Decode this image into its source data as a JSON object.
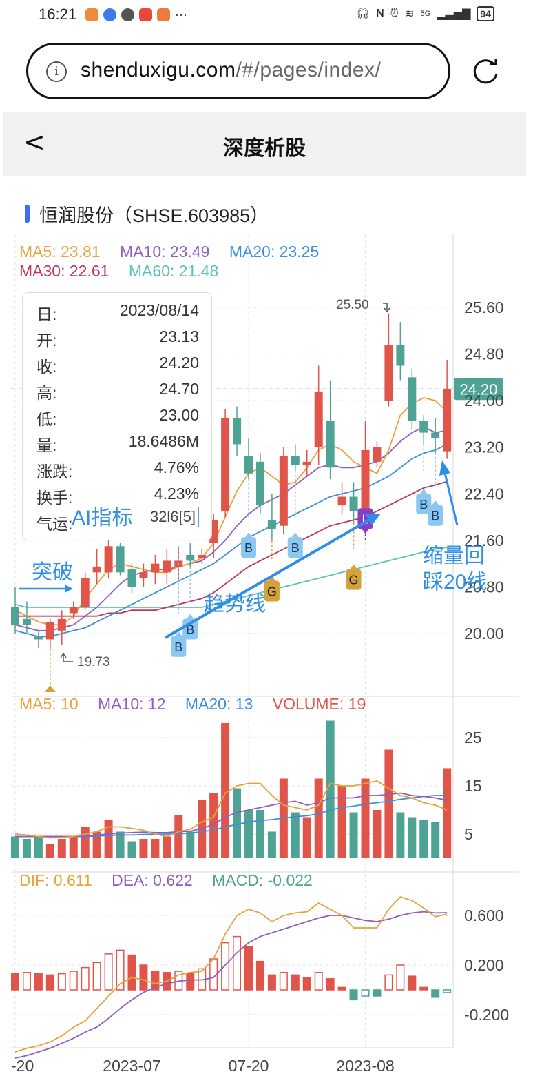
{
  "status_bar": {
    "time": "16:21",
    "signal_label": "5G",
    "battery": "94"
  },
  "browser": {
    "url_main": "shenduxigu.com",
    "url_rest": "/#/pages/index/"
  },
  "header": {
    "back_glyph": "<",
    "title": "深度析股"
  },
  "stock": {
    "name": "恒润股份（SHSE.603985）"
  },
  "ma_legend": {
    "ma5": "MA5: 23.81",
    "ma10": "MA10: 23.49",
    "ma20": "MA20: 23.25",
    "ma30": "MA30: 22.61",
    "ma60": "MA60: 21.48"
  },
  "tooltip": {
    "date_label": "日:",
    "date": "2023/08/14",
    "open_label": "开:",
    "open": "23.13",
    "close_label": "收:",
    "close": "24.20",
    "high_label": "高:",
    "high": "24.70",
    "low_label": "低:",
    "low": "23.00",
    "volume_label": "量:",
    "volume": "18.6486M",
    "change_label": "涨跌:",
    "change": "4.76%",
    "turnover_label": "换手:",
    "turnover": "4.23%",
    "qiyun_label": "气运:",
    "qiyun": "32l6[5]"
  },
  "annotations": {
    "ai": "AI指标",
    "breakout": "突破",
    "trendline": "趋势线",
    "pullback_1": "缩量回",
    "pullback_2": "踩20线",
    "high_marker": "25.50",
    "low_marker": "19.73",
    "buy": "B",
    "gold": "G",
    "long": "L"
  },
  "price_axis": {
    "ticks": [
      "25.60",
      "24.80",
      "24.00",
      "23.20",
      "22.40",
      "21.60",
      "20.80",
      "20.00"
    ],
    "current": "24.20"
  },
  "volume_legend": {
    "ma5": "MA5: 10",
    "ma10": "MA10: 12",
    "ma20": "MA20: 13",
    "volume": "VOLUME: 19"
  },
  "volume_axis": {
    "ticks": [
      "25",
      "15",
      "5"
    ]
  },
  "macd_legend": {
    "dif": "DIF: 0.611",
    "dea": "DEA: 0.622",
    "macd": "MACD: -0.022"
  },
  "macd_axis": {
    "ticks": [
      "0.600",
      "0.200",
      "-0.200"
    ]
  },
  "x_axis": {
    "ticks": [
      "-20",
      "2023-07",
      "07-20",
      "2023-08"
    ]
  },
  "colors": {
    "up": "#e0544a",
    "down": "#4fa394",
    "ma5": "#e8a23a",
    "ma10": "#8e5fc2",
    "ma20": "#3a8ee0",
    "ma30": "#c2355f",
    "ma60": "#5cc1b8",
    "accent": "#3b6ef5"
  },
  "chart_data": {
    "type": "candlestick",
    "price_range": [
      19.4,
      26.0
    ],
    "candles": [
      {
        "o": 20.45,
        "c": 20.15,
        "h": 20.8,
        "l": 20.0
      },
      {
        "o": 20.25,
        "c": 20.15,
        "h": 20.55,
        "l": 20.0
      },
      {
        "o": 19.95,
        "c": 19.9,
        "h": 20.05,
        "l": 19.75
      },
      {
        "o": 19.9,
        "c": 20.2,
        "h": 20.25,
        "l": 19.73
      },
      {
        "o": 20.05,
        "c": 20.25,
        "h": 20.4,
        "l": 19.8
      },
      {
        "o": 20.35,
        "c": 20.45,
        "h": 20.55,
        "l": 20.25
      },
      {
        "o": 20.45,
        "c": 20.95,
        "h": 21.05,
        "l": 20.4
      },
      {
        "o": 21.05,
        "c": 21.15,
        "h": 21.45,
        "l": 20.85
      },
      {
        "o": 21.05,
        "c": 21.5,
        "h": 21.6,
        "l": 20.95
      },
      {
        "o": 21.5,
        "c": 21.05,
        "h": 21.55,
        "l": 21.0
      },
      {
        "o": 21.1,
        "c": 20.8,
        "h": 21.2,
        "l": 20.7
      },
      {
        "o": 20.95,
        "c": 21.05,
        "h": 21.2,
        "l": 20.8
      },
      {
        "o": 21.05,
        "c": 21.2,
        "h": 21.35,
        "l": 20.85
      },
      {
        "o": 21.05,
        "c": 21.25,
        "h": 21.45,
        "l": 20.85
      },
      {
        "o": 21.15,
        "c": 21.25,
        "h": 21.5,
        "l": 20.9
      },
      {
        "o": 21.35,
        "c": 21.25,
        "h": 21.55,
        "l": 21.15
      },
      {
        "o": 21.3,
        "c": 21.35,
        "h": 21.45,
        "l": 21.2
      },
      {
        "o": 21.55,
        "c": 21.95,
        "h": 22.05,
        "l": 21.3
      },
      {
        "o": 22.1,
        "c": 23.7,
        "h": 23.85,
        "l": 22.0
      },
      {
        "o": 23.7,
        "c": 23.25,
        "h": 23.9,
        "l": 23.05
      },
      {
        "o": 23.05,
        "c": 22.75,
        "h": 23.35,
        "l": 22.65
      },
      {
        "o": 22.95,
        "c": 22.2,
        "h": 23.1,
        "l": 22.05
      },
      {
        "o": 21.95,
        "c": 21.8,
        "h": 22.4,
        "l": 21.6
      },
      {
        "o": 21.85,
        "c": 23.05,
        "h": 23.2,
        "l": 21.7
      },
      {
        "o": 23.05,
        "c": 22.9,
        "h": 23.25,
        "l": 22.8
      },
      {
        "o": 22.9,
        "c": 22.95,
        "h": 23.15,
        "l": 22.7
      },
      {
        "o": 23.2,
        "c": 24.15,
        "h": 24.6,
        "l": 22.9
      },
      {
        "o": 23.65,
        "c": 22.85,
        "h": 24.35,
        "l": 22.65
      },
      {
        "o": 22.2,
        "c": 22.35,
        "h": 22.6,
        "l": 22.05
      },
      {
        "o": 22.35,
        "c": 22.1,
        "h": 22.6,
        "l": 21.9
      },
      {
        "o": 21.85,
        "c": 23.15,
        "h": 23.65,
        "l": 21.85
      },
      {
        "o": 22.95,
        "c": 23.2,
        "h": 23.3,
        "l": 22.85
      },
      {
        "o": 24.0,
        "c": 24.95,
        "h": 25.5,
        "l": 23.9
      },
      {
        "o": 24.95,
        "c": 24.6,
        "h": 25.35,
        "l": 24.35
      },
      {
        "o": 24.4,
        "c": 23.65,
        "h": 24.55,
        "l": 23.5
      },
      {
        "o": 23.65,
        "c": 23.45,
        "h": 23.75,
        "l": 23.25
      },
      {
        "o": 23.45,
        "c": 23.35,
        "h": 23.7,
        "l": 23.1
      },
      {
        "o": 23.13,
        "c": 24.2,
        "h": 24.7,
        "l": 23.0
      }
    ],
    "ma5": [
      20.4,
      20.3,
      20.2,
      20.15,
      20.15,
      20.3,
      20.6,
      20.85,
      21.1,
      21.2,
      21.15,
      21.1,
      21.05,
      21.05,
      21.15,
      21.2,
      21.3,
      21.55,
      22.0,
      22.45,
      22.75,
      22.85,
      22.7,
      22.55,
      22.6,
      22.85,
      23.15,
      23.25,
      23.15,
      22.95,
      22.85,
      22.75,
      23.15,
      23.75,
      23.95,
      24.05,
      24.0,
      23.81
    ],
    "ma10": [
      20.15,
      20.1,
      20.05,
      20.05,
      20.1,
      20.15,
      20.3,
      20.45,
      20.65,
      20.85,
      21.0,
      21.05,
      21.1,
      21.1,
      21.15,
      21.2,
      21.25,
      21.4,
      21.6,
      21.85,
      22.05,
      22.2,
      22.3,
      22.4,
      22.55,
      22.7,
      22.85,
      22.9,
      22.85,
      22.85,
      22.9,
      22.95,
      23.1,
      23.3,
      23.45,
      23.55,
      23.45,
      23.49
    ],
    "ma20": [
      20.05,
      20.0,
      19.95,
      19.95,
      20.0,
      20.05,
      20.1,
      20.2,
      20.3,
      20.4,
      20.5,
      20.6,
      20.7,
      20.8,
      20.9,
      21.0,
      21.1,
      21.2,
      21.35,
      21.5,
      21.65,
      21.75,
      21.85,
      21.95,
      22.05,
      22.15,
      22.25,
      22.35,
      22.4,
      22.45,
      22.5,
      22.6,
      22.7,
      22.85,
      23.0,
      23.1,
      23.15,
      23.25
    ],
    "ma30": [
      20.3,
      20.3,
      20.3,
      20.3,
      20.3,
      20.3,
      20.3,
      20.3,
      20.35,
      20.35,
      20.4,
      20.4,
      20.4,
      20.45,
      20.5,
      20.55,
      20.6,
      20.7,
      20.85,
      21.0,
      21.15,
      21.25,
      21.35,
      21.45,
      21.55,
      21.65,
      21.75,
      21.85,
      21.9,
      21.95,
      22.0,
      22.1,
      22.2,
      22.3,
      22.4,
      22.5,
      22.55,
      22.61
    ],
    "ma60": [
      20.5,
      20.45,
      20.45,
      20.45,
      20.45,
      20.45,
      20.45,
      20.45,
      20.45,
      20.45,
      20.45,
      20.45,
      20.45,
      20.45,
      20.45,
      20.45,
      20.45,
      20.5,
      20.55,
      20.6,
      20.65,
      20.7,
      20.75,
      20.8,
      20.85,
      20.9,
      20.95,
      21.0,
      21.05,
      21.1,
      21.15,
      21.2,
      21.25,
      21.3,
      21.35,
      21.4,
      21.45,
      21.48
    ],
    "volume": [
      4.5,
      4.0,
      4.5,
      3.0,
      4.0,
      4.5,
      6.5,
      5.5,
      8.0,
      5.5,
      3.5,
      4.0,
      4.0,
      4.5,
      9.0,
      5.5,
      12.0,
      13.5,
      28.0,
      14.5,
      10.0,
      10.0,
      5.5,
      16.5,
      9.5,
      8.5,
      16.5,
      28.5,
      15.0,
      9.5,
      16.5,
      10.0,
      22.5,
      9.5,
      8.5,
      8.0,
      7.5,
      18.65
    ],
    "vol_ma5": [
      5.0,
      4.8,
      4.5,
      4.2,
      4.3,
      4.5,
      5.0,
      5.5,
      6.5,
      6.5,
      6.2,
      5.8,
      5.0,
      4.5,
      5.5,
      6.0,
      7.5,
      8.5,
      13.5,
      15.0,
      15.5,
      15.5,
      13.0,
      11.0,
      10.5,
      10.0,
      11.0,
      15.5,
      15.0,
      15.0,
      15.5,
      16.0,
      14.5,
      13.0,
      12.5,
      11.5,
      11.0,
      10.0
    ],
    "vol_ma10": [
      4.5,
      4.5,
      4.5,
      4.5,
      4.5,
      4.5,
      4.6,
      4.8,
      5.0,
      5.2,
      5.3,
      5.4,
      5.3,
      5.3,
      5.5,
      5.6,
      6.2,
      7.0,
      8.5,
      9.5,
      10.0,
      10.5,
      11.0,
      11.5,
      11.8,
      11.0,
      11.5,
      12.5,
      12.5,
      12.5,
      13.0,
      13.0,
      13.2,
      13.5,
      13.0,
      12.8,
      12.5,
      12.0
    ],
    "vol_ma20": [
      4.5,
      4.5,
      4.5,
      4.5,
      4.5,
      4.5,
      4.5,
      4.6,
      4.7,
      4.8,
      4.8,
      4.9,
      5.0,
      5.0,
      5.1,
      5.2,
      5.5,
      5.8,
      6.5,
      7.0,
      7.5,
      7.8,
      8.0,
      8.3,
      8.6,
      8.8,
      9.2,
      10.0,
      10.5,
      10.8,
      11.2,
      11.5,
      11.8,
      12.2,
      12.5,
      12.8,
      13.0,
      13.0
    ],
    "macd_hist": [
      0.13,
      0.14,
      0.13,
      0.12,
      0.13,
      0.15,
      0.18,
      0.22,
      0.29,
      0.32,
      0.28,
      0.2,
      0.15,
      0.14,
      0.15,
      0.13,
      0.17,
      0.25,
      0.38,
      0.43,
      0.35,
      0.23,
      0.12,
      0.14,
      0.12,
      0.1,
      0.14,
      0.09,
      0.02,
      -0.08,
      -0.05,
      -0.05,
      0.12,
      0.2,
      0.11,
      0.02,
      -0.06,
      -0.022
    ],
    "dif": [
      -0.5,
      -0.47,
      -0.45,
      -0.42,
      -0.37,
      -0.3,
      -0.25,
      -0.15,
      -0.05,
      0.05,
      0.1,
      0.08,
      0.05,
      0.07,
      0.12,
      0.14,
      0.15,
      0.25,
      0.45,
      0.6,
      0.65,
      0.62,
      0.55,
      0.6,
      0.62,
      0.63,
      0.7,
      0.65,
      0.6,
      0.5,
      0.5,
      0.5,
      0.65,
      0.75,
      0.72,
      0.66,
      0.59,
      0.611
    ],
    "dea": [
      -0.55,
      -0.53,
      -0.5,
      -0.47,
      -0.43,
      -0.39,
      -0.34,
      -0.3,
      -0.23,
      -0.15,
      -0.08,
      -0.02,
      0.02,
      0.05,
      0.07,
      0.08,
      0.08,
      0.1,
      0.2,
      0.3,
      0.38,
      0.43,
      0.46,
      0.49,
      0.52,
      0.55,
      0.58,
      0.6,
      0.6,
      0.58,
      0.56,
      0.55,
      0.57,
      0.6,
      0.62,
      0.63,
      0.62,
      0.622
    ],
    "volume_range": [
      0,
      30
    ],
    "macd_range": [
      -0.55,
      0.8
    ]
  }
}
